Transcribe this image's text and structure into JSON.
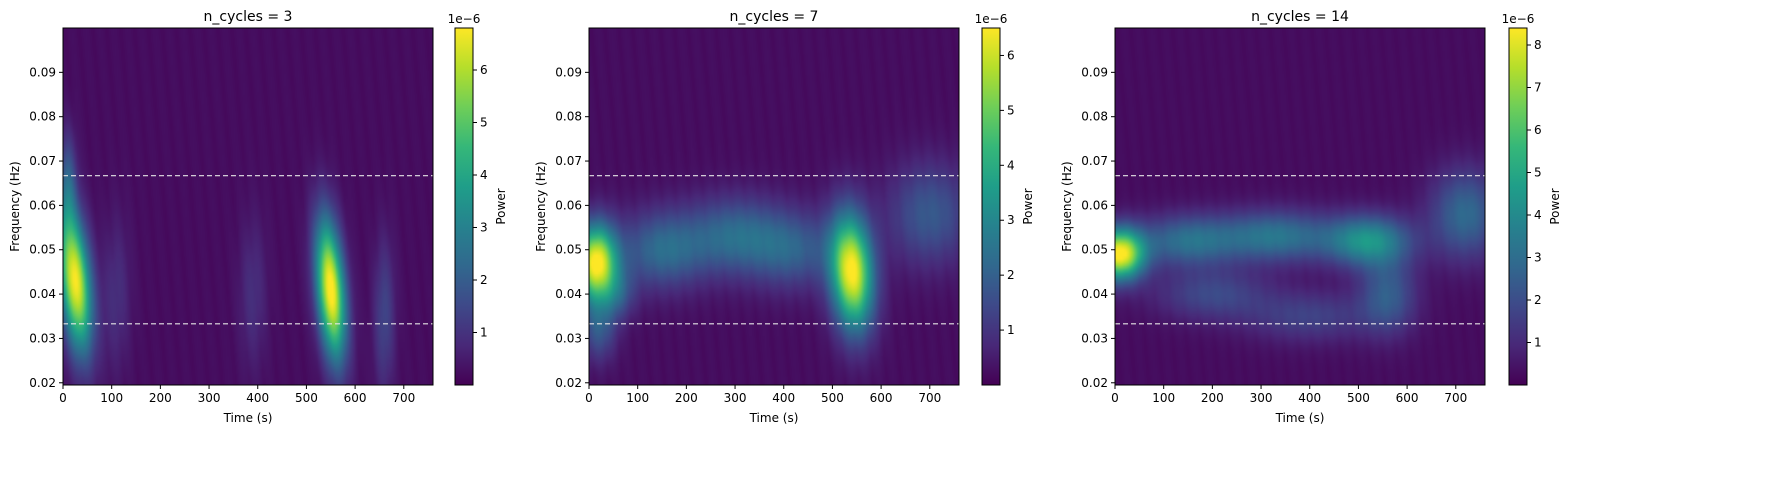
{
  "chart_data": [
    {
      "type": "heatmap",
      "title": "n_cycles = 3",
      "xlabel": "Time (s)",
      "ylabel": "Frequency (Hz)",
      "xlim": [
        0,
        760
      ],
      "ylim": [
        0.0195,
        0.1
      ],
      "xticks": [
        0,
        100,
        200,
        300,
        400,
        500,
        600,
        700
      ],
      "yticks": [
        0.02,
        0.03,
        0.04,
        0.05,
        0.06,
        0.07,
        0.08,
        0.09
      ],
      "ytick_labels": [
        "0.02",
        "0.03",
        "0.04",
        "0.05",
        "0.06",
        "0.07",
        "0.08",
        "0.09"
      ],
      "band_lines": [
        0.0333,
        0.0667
      ],
      "colorbar": {
        "label": "Power",
        "offset_text": "1e−6",
        "min": 0,
        "max": 6.8,
        "ticks": [
          1,
          2,
          3,
          4,
          5,
          6
        ],
        "colormap": [
          "#440154",
          "#482878",
          "#3e4989",
          "#31688e",
          "#26828e",
          "#1f9e89",
          "#35b779",
          "#6ece58",
          "#b5de2b",
          "#fde725"
        ]
      },
      "blobs": [
        {
          "t": 25,
          "f": 0.043,
          "amp": 6.6,
          "wt": 22,
          "wf": 0.011,
          "skew": -0.8
        },
        {
          "t": 550,
          "f": 0.041,
          "amp": 6.8,
          "wt": 20,
          "wf": 0.011,
          "skew": -0.7
        },
        {
          "t": 10,
          "f": 0.065,
          "amp": 1.6,
          "wt": 12,
          "wf": 0.008,
          "skew": 0
        },
        {
          "t": 660,
          "f": 0.035,
          "amp": 1.2,
          "wt": 15,
          "wf": 0.012,
          "skew": 0
        },
        {
          "t": 110,
          "f": 0.04,
          "amp": 0.7,
          "wt": 20,
          "wf": 0.012,
          "skew": 0
        },
        {
          "t": 390,
          "f": 0.04,
          "amp": 0.7,
          "wt": 20,
          "wf": 0.012,
          "skew": 0
        }
      ],
      "base": 0.15
    },
    {
      "type": "heatmap",
      "title": "n_cycles = 7",
      "xlabel": "Time (s)",
      "ylabel": "Frequency (Hz)",
      "xlim": [
        0,
        760
      ],
      "ylim": [
        0.0195,
        0.1
      ],
      "xticks": [
        0,
        100,
        200,
        300,
        400,
        500,
        600,
        700
      ],
      "yticks": [
        0.02,
        0.03,
        0.04,
        0.05,
        0.06,
        0.07,
        0.08,
        0.09
      ],
      "ytick_labels": [
        "0.02",
        "0.03",
        "0.04",
        "0.05",
        "0.06",
        "0.07",
        "0.08",
        "0.09"
      ],
      "band_lines": [
        0.0333,
        0.0667
      ],
      "colorbar": {
        "label": "Power",
        "offset_text": "1e−6",
        "min": 0,
        "max": 6.5,
        "ticks": [
          1,
          2,
          3,
          4,
          5,
          6
        ],
        "colormap": [
          "#440154",
          "#482878",
          "#3e4989",
          "#31688e",
          "#26828e",
          "#1f9e89",
          "#35b779",
          "#6ece58",
          "#b5de2b",
          "#fde725"
        ]
      },
      "blobs": [
        {
          "t": 15,
          "f": 0.047,
          "amp": 6.4,
          "wt": 30,
          "wf": 0.006,
          "skew": 0
        },
        {
          "t": 540,
          "f": 0.045,
          "amp": 6.3,
          "wt": 30,
          "wf": 0.009,
          "skew": -0.5
        },
        {
          "t": 20,
          "f": 0.032,
          "amp": 1.5,
          "wt": 25,
          "wf": 0.005,
          "skew": 0
        },
        {
          "t": 150,
          "f": 0.05,
          "amp": 2.0,
          "wt": 60,
          "wf": 0.006,
          "skew": 0
        },
        {
          "t": 300,
          "f": 0.053,
          "amp": 2.0,
          "wt": 70,
          "wf": 0.006,
          "skew": 0
        },
        {
          "t": 420,
          "f": 0.05,
          "amp": 1.6,
          "wt": 60,
          "wf": 0.006,
          "skew": 0
        },
        {
          "t": 700,
          "f": 0.058,
          "amp": 1.6,
          "wt": 60,
          "wf": 0.008,
          "skew": 0
        },
        {
          "t": 60,
          "f": 0.04,
          "amp": 1.2,
          "wt": 25,
          "wf": 0.004,
          "skew": 0
        }
      ],
      "base": 0.15
    },
    {
      "type": "heatmap",
      "title": "n_cycles = 14",
      "xlabel": "Time (s)",
      "ylabel": "Frequency (Hz)",
      "xlim": [
        0,
        760
      ],
      "ylim": [
        0.0195,
        0.1
      ],
      "xticks": [
        0,
        100,
        200,
        300,
        400,
        500,
        600,
        700
      ],
      "yticks": [
        0.02,
        0.03,
        0.04,
        0.05,
        0.06,
        0.07,
        0.08,
        0.09
      ],
      "ytick_labels": [
        "0.02",
        "0.03",
        "0.04",
        "0.05",
        "0.06",
        "0.07",
        "0.08",
        "0.09"
      ],
      "band_lines": [
        0.0333,
        0.0667
      ],
      "colorbar": {
        "label": "Power",
        "offset_text": "1e−6",
        "min": 0,
        "max": 8.4,
        "ticks": [
          1,
          2,
          3,
          4,
          5,
          6,
          7,
          8
        ],
        "colormap": [
          "#440154",
          "#482878",
          "#3e4989",
          "#31688e",
          "#26828e",
          "#1f9e89",
          "#35b779",
          "#6ece58",
          "#b5de2b",
          "#fde725"
        ]
      },
      "blobs": [
        {
          "t": 10,
          "f": 0.049,
          "amp": 8.2,
          "wt": 35,
          "wf": 0.004,
          "skew": 0
        },
        {
          "t": 150,
          "f": 0.052,
          "amp": 2.8,
          "wt": 70,
          "wf": 0.004,
          "skew": 0
        },
        {
          "t": 330,
          "f": 0.053,
          "amp": 3.0,
          "wt": 80,
          "wf": 0.004,
          "skew": 0
        },
        {
          "t": 520,
          "f": 0.052,
          "amp": 4.0,
          "wt": 60,
          "wf": 0.004,
          "skew": 0
        },
        {
          "t": 720,
          "f": 0.058,
          "amp": 2.6,
          "wt": 50,
          "wf": 0.007,
          "skew": 0
        },
        {
          "t": 560,
          "f": 0.04,
          "amp": 2.2,
          "wt": 40,
          "wf": 0.006,
          "skew": 0
        },
        {
          "t": 200,
          "f": 0.04,
          "amp": 1.6,
          "wt": 80,
          "wf": 0.004,
          "skew": 0
        },
        {
          "t": 400,
          "f": 0.035,
          "amp": 1.4,
          "wt": 90,
          "wf": 0.004,
          "skew": 0
        }
      ],
      "base": 0.2
    }
  ]
}
